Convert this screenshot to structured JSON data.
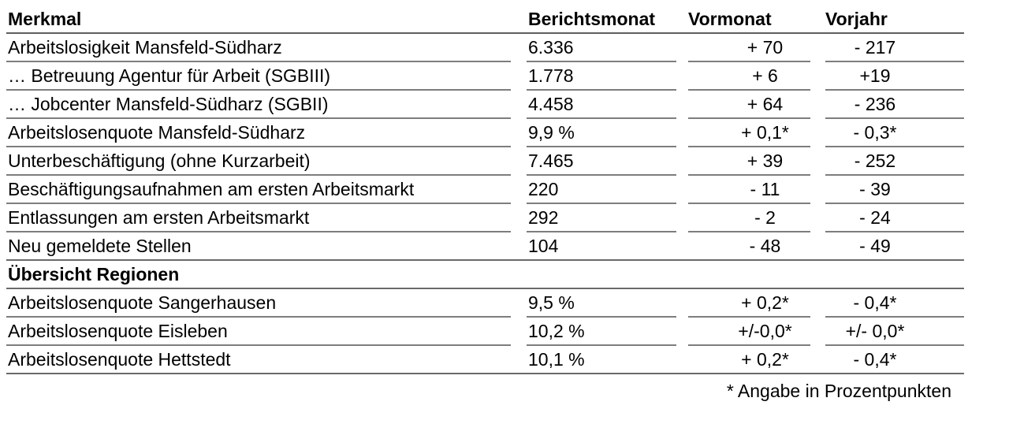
{
  "table": {
    "headers": {
      "merkmal": "Merkmal",
      "berichtsmonat": "Berichtsmonat",
      "vormonat": "Vormonat",
      "vorjahr": "Vorjahr"
    },
    "rows": [
      {
        "merkmal": "Arbeitslosigkeit Mansfeld-Südharz",
        "berichtsmonat": "6.336",
        "vormonat": "+ 70",
        "vorjahr": "- 217"
      },
      {
        "merkmal": "… Betreuung Agentur für Arbeit (SGBIII)",
        "berichtsmonat": "1.778",
        "vormonat": "+ 6",
        "vorjahr": "+19"
      },
      {
        "merkmal": "… Jobcenter Mansfeld-Südharz (SGBII)",
        "berichtsmonat": "4.458",
        "vormonat": "+ 64",
        "vorjahr": "- 236"
      },
      {
        "merkmal": "Arbeitslosenquote Mansfeld-Südharz",
        "berichtsmonat": "9,9 %",
        "vormonat": "+ 0,1*",
        "vorjahr": "- 0,3*"
      },
      {
        "merkmal": "Unterbeschäftigung (ohne Kurzarbeit)",
        "berichtsmonat": "7.465",
        "vormonat": "+ 39",
        "vorjahr": "- 252"
      },
      {
        "merkmal": "Beschäftigungsaufnahmen am ersten Arbeitsmarkt",
        "berichtsmonat": "220",
        "vormonat": "- 11",
        "vorjahr": "- 39"
      },
      {
        "merkmal": "Entlassungen am ersten Arbeitsmarkt",
        "berichtsmonat": "292",
        "vormonat": "- 2",
        "vorjahr": "- 24"
      },
      {
        "merkmal": "Neu gemeldete Stellen",
        "berichtsmonat": "104",
        "vormonat": "- 48",
        "vorjahr": "- 49"
      },
      {
        "section": "Übersicht Regionen"
      },
      {
        "merkmal": "Arbeitslosenquote Sangerhausen",
        "berichtsmonat": "9,5 %",
        "vormonat": "+ 0,2*",
        "vorjahr": "- 0,4*"
      },
      {
        "merkmal": "Arbeitslosenquote Eisleben",
        "berichtsmonat": "10,2 %",
        "vormonat": "+/-0,0*",
        "vorjahr": "+/- 0,0*"
      },
      {
        "merkmal": "Arbeitslosenquote Hettstedt",
        "berichtsmonat": "10,1 %",
        "vormonat": "+ 0,2*",
        "vorjahr": "- 0,4*"
      }
    ],
    "footnote": "* Angabe in Prozentpunkten"
  },
  "colors": {
    "text": "#000000",
    "rule_segment": "#7d7d7d",
    "rule_full": "#6a6a6a"
  }
}
